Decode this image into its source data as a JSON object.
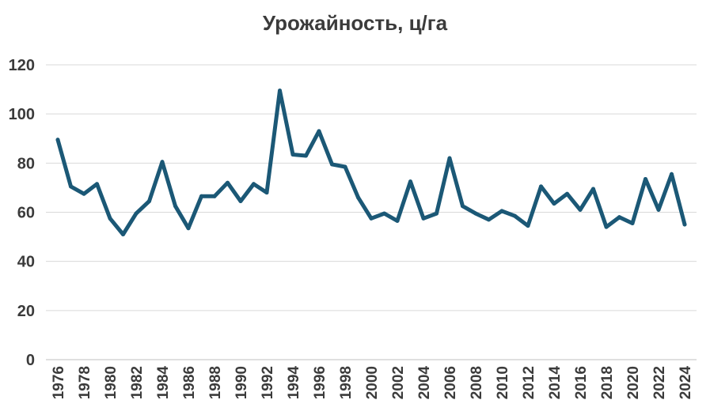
{
  "chart_data": {
    "type": "line",
    "title": "Урожайность, ц/га",
    "xlabel": "",
    "ylabel": "",
    "ylim": [
      0,
      120
    ],
    "yticks": [
      0,
      20,
      40,
      60,
      80,
      100,
      120
    ],
    "xtick_labels": [
      "1976",
      "1978",
      "1980",
      "1982",
      "1984",
      "1986",
      "1988",
      "1990",
      "1992",
      "1994",
      "1996",
      "1998",
      "2000",
      "2002",
      "2004",
      "2006",
      "2008",
      "2010",
      "2012",
      "2014",
      "2016",
      "2018",
      "2020",
      "2022",
      "2024"
    ],
    "grid": "horizontal",
    "legend": "none",
    "color": "#1b5876",
    "x": [
      1976,
      1977,
      1978,
      1979,
      1980,
      1981,
      1982,
      1983,
      1984,
      1985,
      1986,
      1987,
      1988,
      1989,
      1990,
      1991,
      1992,
      1993,
      1994,
      1995,
      1996,
      1997,
      1998,
      1999,
      2000,
      2001,
      2002,
      2003,
      2004,
      2005,
      2006,
      2007,
      2008,
      2009,
      2010,
      2011,
      2012,
      2013,
      2014,
      2015,
      2016,
      2017,
      2018,
      2019,
      2020,
      2021,
      2022,
      2023,
      2024
    ],
    "series": [
      {
        "values": [
          89.5,
          70.5,
          67.5,
          71.5,
          57.5,
          51,
          59.5,
          64.5,
          80.5,
          62.5,
          53.5,
          66.5,
          66.5,
          72,
          64.5,
          71.5,
          68,
          109.5,
          83.5,
          83,
          93,
          79.5,
          78.5,
          66,
          57.5,
          59.5,
          56.5,
          72.5,
          57.5,
          59.5,
          82,
          62.5,
          59.5,
          57,
          60.5,
          58.5,
          54.5,
          70.5,
          63.5,
          67.5,
          61,
          69.5,
          54,
          58,
          55.5,
          73.5,
          61,
          75.5,
          55
        ]
      }
    ]
  }
}
